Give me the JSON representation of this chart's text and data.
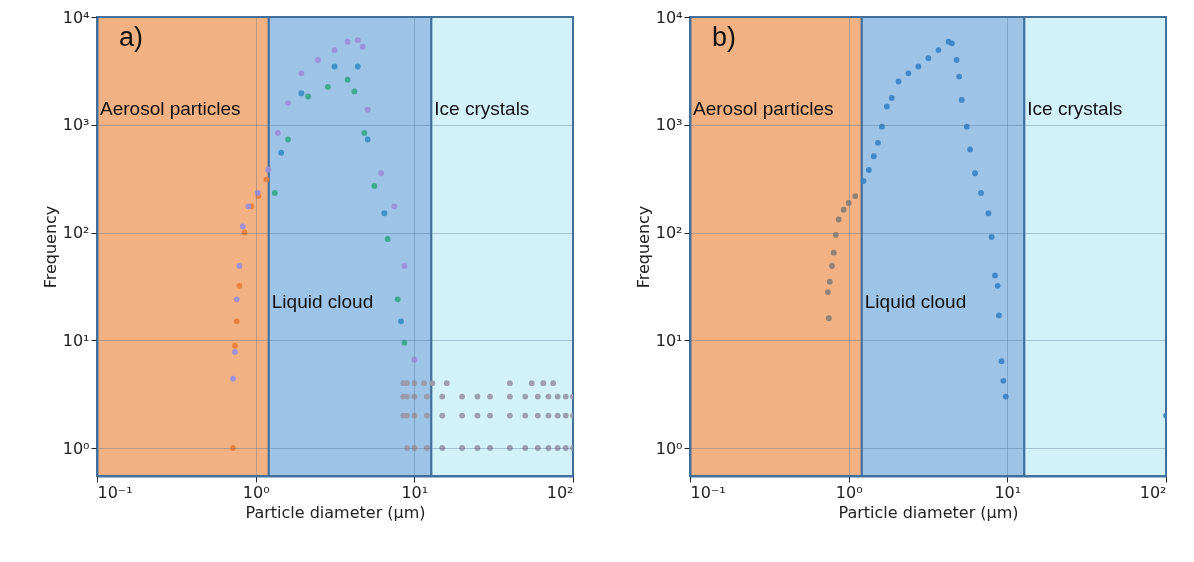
{
  "chart_data": [
    {
      "type": "scatter",
      "xlabel": "Particle diameter (μm)",
      "ylabel": "Frequency",
      "annotations": [
        "a)"
      ],
      "log": "xy",
      "grid": true,
      "marker": "circle",
      "xlim": [
        0.1,
        100
      ],
      "xticks": [
        {
          "value": 0.1,
          "label": "10⁻¹"
        },
        {
          "value": 1,
          "label": "10⁰"
        },
        {
          "value": 10,
          "label": "10¹"
        },
        {
          "value": 100,
          "label": "10²"
        }
      ],
      "ylim": [
        0.55,
        10000
      ],
      "yticks": [
        {
          "value": 1,
          "label": "10⁰"
        },
        {
          "value": 10,
          "label": "10¹"
        },
        {
          "value": 100,
          "label": "10²"
        },
        {
          "value": 1000,
          "label": "10³"
        },
        {
          "value": 10000,
          "label": "10⁴"
        }
      ],
      "bands": [
        {
          "axis": "x",
          "from": 0.1,
          "to": 1.21,
          "label": "Aerosol particles",
          "color": "#f2b183"
        },
        {
          "axis": "x",
          "from": 1.21,
          "to": 12.8,
          "label": "Liquid cloud",
          "color": "#9dc3e6"
        },
        {
          "axis": "x",
          "from": 12.8,
          "to": 100,
          "label": "Ice crystals",
          "color": "#d3f1f8"
        }
      ],
      "series": [
        {
          "color": "#e8803a",
          "x": [
            0.74,
            0.76,
            0.79,
            0.85,
            0.94,
            1.04,
            1.17,
            0.72
          ],
          "values": [
            8.9,
            15,
            32,
            100,
            175,
            218,
            310,
            1
          ]
        },
        {
          "color": "#9b8fd8",
          "x": [
            0.72,
            0.74,
            0.76,
            0.79,
            0.83,
            0.9,
            1.03,
            1.2,
            1.38,
            1.6,
            1.94,
            2.47,
            3.14,
            3.8,
            4.4,
            4.73,
            5.08,
            6.17,
            7.48,
            8.65,
            10.0
          ],
          "values": [
            4.4,
            7.8,
            24,
            49,
            114,
            175,
            233,
            383,
            840,
            1590,
            3000,
            4000,
            4930,
            5900,
            6100,
            5300,
            1380,
            355,
            175,
            49,
            6.6
          ]
        },
        {
          "color": "#3b8fc4",
          "x": [
            1.45,
            1.94,
            3.14,
            4.4,
            5.08,
            6.47,
            8.24
          ],
          "values": [
            550,
            1960,
            3470,
            3470,
            730,
            151,
            15
          ]
        },
        {
          "color": "#3aa88a",
          "x": [
            1.32,
            1.6,
            2.14,
            2.85,
            3.8,
            4.19,
            4.84,
            5.6,
            6.8,
            7.85,
            8.65
          ],
          "values": [
            233,
            730,
            1830,
            2250,
            2620,
            2040,
            840,
            270,
            87,
            24,
            9.5
          ]
        },
        {
          "color": "#9a9aaa",
          "x": [
            8.5,
            9,
            10,
            11.5,
            13,
            16,
            40,
            55,
            65,
            75,
            8.5,
            9,
            10,
            12,
            15,
            20,
            25,
            30,
            40,
            50,
            60,
            70,
            80,
            90,
            100,
            8.5,
            9,
            10,
            12,
            15,
            20,
            25,
            30,
            40,
            50,
            60,
            70,
            80,
            90,
            100,
            9,
            10,
            12,
            15,
            20,
            25,
            30,
            40,
            50,
            60,
            70,
            80,
            90,
            100
          ],
          "values": [
            4,
            4,
            4,
            4,
            4,
            4,
            4,
            4,
            4,
            4,
            3,
            3,
            3,
            3,
            3,
            3,
            3,
            3,
            3,
            3,
            3,
            3,
            3,
            3,
            3,
            2,
            2,
            2,
            2,
            2,
            2,
            2,
            2,
            2,
            2,
            2,
            2,
            2,
            2,
            2,
            1,
            1,
            1,
            1,
            1,
            1,
            1,
            1,
            1,
            1,
            1,
            1,
            1,
            1
          ]
        }
      ]
    },
    {
      "type": "scatter",
      "xlabel": "Particle diameter (μm)",
      "ylabel": "Frequency",
      "annotations": [
        "b)"
      ],
      "log": "xy",
      "grid": true,
      "marker": "circle",
      "xlim": [
        0.1,
        100
      ],
      "xticks": [
        {
          "value": 0.1,
          "label": "10⁻¹"
        },
        {
          "value": 1,
          "label": "10⁰"
        },
        {
          "value": 10,
          "label": "10¹"
        },
        {
          "value": 100,
          "label": "10²"
        }
      ],
      "ylim": [
        0.55,
        10000
      ],
      "yticks": [
        {
          "value": 1,
          "label": "10⁰"
        },
        {
          "value": 10,
          "label": "10¹"
        },
        {
          "value": 100,
          "label": "10²"
        },
        {
          "value": 1000,
          "label": "10³"
        },
        {
          "value": 10000,
          "label": "10⁴"
        }
      ],
      "bands": [
        {
          "axis": "x",
          "from": 0.1,
          "to": 1.21,
          "label": "Aerosol particles",
          "color": "#f2b183"
        },
        {
          "axis": "x",
          "from": 1.21,
          "to": 12.8,
          "label": "Liquid cloud",
          "color": "#9dc3e6"
        },
        {
          "axis": "x",
          "from": 12.8,
          "to": 100,
          "label": "Ice crystals",
          "color": "#d3f1f8"
        }
      ],
      "series": [
        {
          "color": "#8a7f74",
          "x": [
            0.75,
            0.74,
            0.76,
            0.785,
            0.805,
            0.83,
            0.865,
            0.93,
            1.0,
            1.1
          ],
          "values": [
            16,
            28,
            35,
            49,
            65,
            95,
            132,
            163,
            188,
            218
          ]
        },
        {
          "color": "#3d85c6",
          "x": [
            1.24,
            1.34,
            1.44,
            1.53,
            1.62,
            1.74,
            1.87,
            2.06,
            2.38,
            2.75,
            3.18,
            3.68,
            4.26,
            4.47,
            4.79,
            4.97,
            5.16,
            5.55,
            5.82,
            6.26,
            6.83,
            7.6,
            7.96,
            8.36,
            8.69,
            8.85,
            9.2,
            9.44,
            9.77,
            100
          ],
          "values": [
            300,
            380,
            510,
            680,
            960,
            1480,
            1770,
            2520,
            3000,
            3470,
            4150,
            4930,
            5900,
            5700,
            4000,
            2800,
            1700,
            960,
            590,
            355,
            233,
            151,
            91,
            40,
            32,
            17,
            6.4,
            4.2,
            3.0,
            2
          ]
        }
      ]
    }
  ]
}
